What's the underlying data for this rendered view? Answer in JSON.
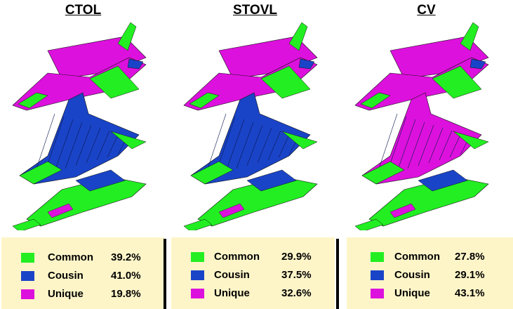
{
  "colors": {
    "common": "#22ee22",
    "cousin": "#1a44c8",
    "unique": "#dd11dd"
  },
  "variants": [
    {
      "title": "CTOL",
      "legend": [
        {
          "label": "Common",
          "value": "39.2%",
          "category": "common"
        },
        {
          "label": "Cousin",
          "value": "41.0%",
          "category": "cousin"
        },
        {
          "label": "Unique",
          "value": "19.8%",
          "category": "unique"
        }
      ],
      "parts": {
        "top": "unique",
        "middle": "cousin",
        "bottom": "common"
      }
    },
    {
      "title": "STOVL",
      "legend": [
        {
          "label": "Common",
          "value": "29.9%",
          "category": "common"
        },
        {
          "label": "Cousin",
          "value": "37.5%",
          "category": "cousin"
        },
        {
          "label": "Unique",
          "value": "32.6%",
          "category": "unique"
        }
      ],
      "parts": {
        "top": "unique",
        "middle": "cousin",
        "bottom": "common"
      }
    },
    {
      "title": "CV",
      "legend": [
        {
          "label": "Common",
          "value": "27.8%",
          "category": "common"
        },
        {
          "label": "Cousin",
          "value": "29.1%",
          "category": "cousin"
        },
        {
          "label": "Unique",
          "value": "43.1%",
          "category": "unique"
        }
      ],
      "parts": {
        "top": "unique",
        "middle": "unique",
        "bottom": "common"
      }
    }
  ]
}
